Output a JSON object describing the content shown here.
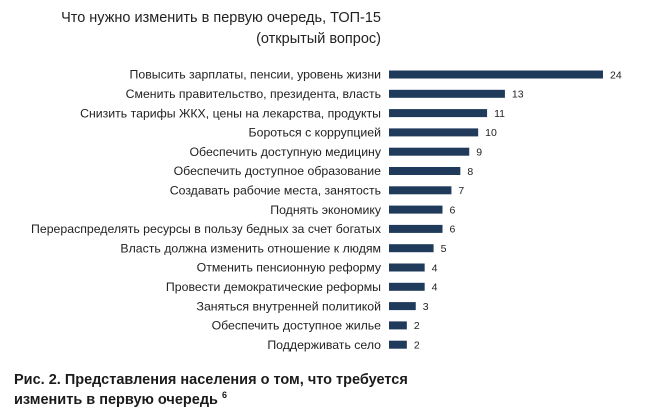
{
  "chart_data": {
    "type": "bar",
    "orientation": "horizontal",
    "title": "Что нужно изменить в первую очередь, ТОП-15",
    "subtitle": "(открытый вопрос)",
    "xlabel": "",
    "ylabel": "",
    "grid": false,
    "legend": "none",
    "bar_color": "#1f3a5a",
    "categories": [
      "Повысить зарплаты, пенсии, уровень жизни",
      "Сменить правительство, президента, власть",
      "Снизить тарифы ЖКХ, цены на лекарства, продукты",
      "Бороться с коррупцией",
      "Обеспечить доступную медицину",
      "Обеспечить доступное образование",
      "Создавать рабочие места, занятость",
      "Поднять экономику",
      "Перераспределять ресурсы в пользу бедных за  счет богатых",
      "Власть должна изменить отношение к людям",
      "Отменить пенсионную реформу",
      "Провести демократические реформы",
      "Заняться внутренней политикой",
      "Обеспечить доступное жилье",
      "Поддерживать село"
    ],
    "values": [
      24,
      13,
      11,
      10,
      9,
      8,
      7,
      6,
      6,
      5,
      4,
      4,
      3,
      2,
      2
    ],
    "value_labels": [
      "24",
      "13",
      "11",
      "10",
      "9",
      "8",
      "7",
      "6",
      "6",
      "5",
      "4",
      "4",
      "3",
      "2",
      "2"
    ],
    "xlim": [
      0,
      24
    ]
  },
  "caption": {
    "line1": "Рис. 2. Представления населения о том, что требуется",
    "line2": "изменить в первую очередь",
    "footnote": "6"
  }
}
